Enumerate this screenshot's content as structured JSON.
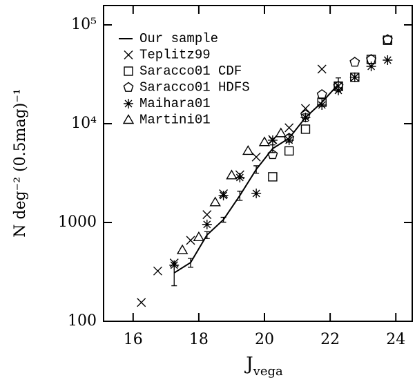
{
  "chart_data": {
    "type": "scatter",
    "xlabel": {
      "main": "J",
      "sub": "vega"
    },
    "ylabel": "N deg⁻² (0.5mag)⁻¹",
    "xlim": [
      15.1,
      24.5
    ],
    "ylim": [
      100,
      157000
    ],
    "ylog": true,
    "xticks": [
      16,
      18,
      20,
      22,
      24
    ],
    "yticks": [
      100,
      1000,
      {
        "value": 10000,
        "label": "10⁴"
      },
      {
        "value": 100000,
        "label": "10⁵"
      }
    ],
    "legend": "upper-left",
    "series": [
      {
        "name": "Our sample",
        "marker": "line",
        "color": "#000000",
        "x": [
          17.25,
          17.75,
          18.25,
          18.75,
          19.25,
          19.75,
          20.25,
          20.75,
          21.25,
          21.75,
          22.25
        ],
        "values": [
          309,
          393,
          748,
          1067,
          1875,
          3450,
          5600,
          7130,
          11560,
          16480,
          25060
        ],
        "errors": [
          80,
          40,
          60,
          60,
          200,
          300,
          500,
          600,
          1000,
          1500,
          4000
        ]
      },
      {
        "name": "Teplitz99",
        "marker": "cross",
        "color": "#000000",
        "x": [
          16.25,
          16.75,
          17.25,
          17.75,
          18.25,
          18.75,
          19.25,
          19.75,
          20.25,
          20.75,
          21.25,
          21.75,
          22.25,
          22.75
        ],
        "values": [
          155,
          323,
          389,
          659,
          1200,
          1950,
          3040,
          4600,
          6900,
          9100,
          14250,
          35700,
          24000,
          29500
        ]
      },
      {
        "name": "Saracco01 CDF",
        "marker": "square",
        "color": "#000000",
        "x": [
          20.25,
          20.75,
          21.25,
          21.75,
          22.25,
          22.75,
          23.25,
          23.75
        ],
        "values": [
          2900,
          5300,
          8800,
          16500,
          24000,
          29500,
          44700,
          70000
        ]
      },
      {
        "name": "Saracco01 HDFS",
        "marker": "pentagon",
        "color": "#000000",
        "x": [
          20.25,
          20.75,
          21.25,
          21.75,
          22.25,
          22.75,
          23.25,
          23.75
        ],
        "values": [
          4860,
          7130,
          12300,
          19700,
          24000,
          41900,
          44700,
          71000
        ]
      },
      {
        "name": "Maihara01",
        "marker": "asterisk",
        "color": "#000000",
        "x": [
          17.25,
          18.25,
          18.75,
          19.25,
          19.75,
          20.25,
          20.75,
          21.25,
          21.75,
          22.25,
          22.75,
          23.25,
          23.75
        ],
        "values": [
          370,
          955,
          1875,
          2850,
          1970,
          6800,
          6800,
          11560,
          15450,
          21700,
          29500,
          38000,
          44000
        ]
      },
      {
        "name": "Martini01",
        "marker": "triangle",
        "color": "#000000",
        "x": [
          17.5,
          18.0,
          18.5,
          19.0,
          19.5,
          20.0,
          20.5
        ],
        "values": [
          525,
          710,
          1600,
          3000,
          5300,
          6500,
          8000
        ]
      }
    ]
  }
}
